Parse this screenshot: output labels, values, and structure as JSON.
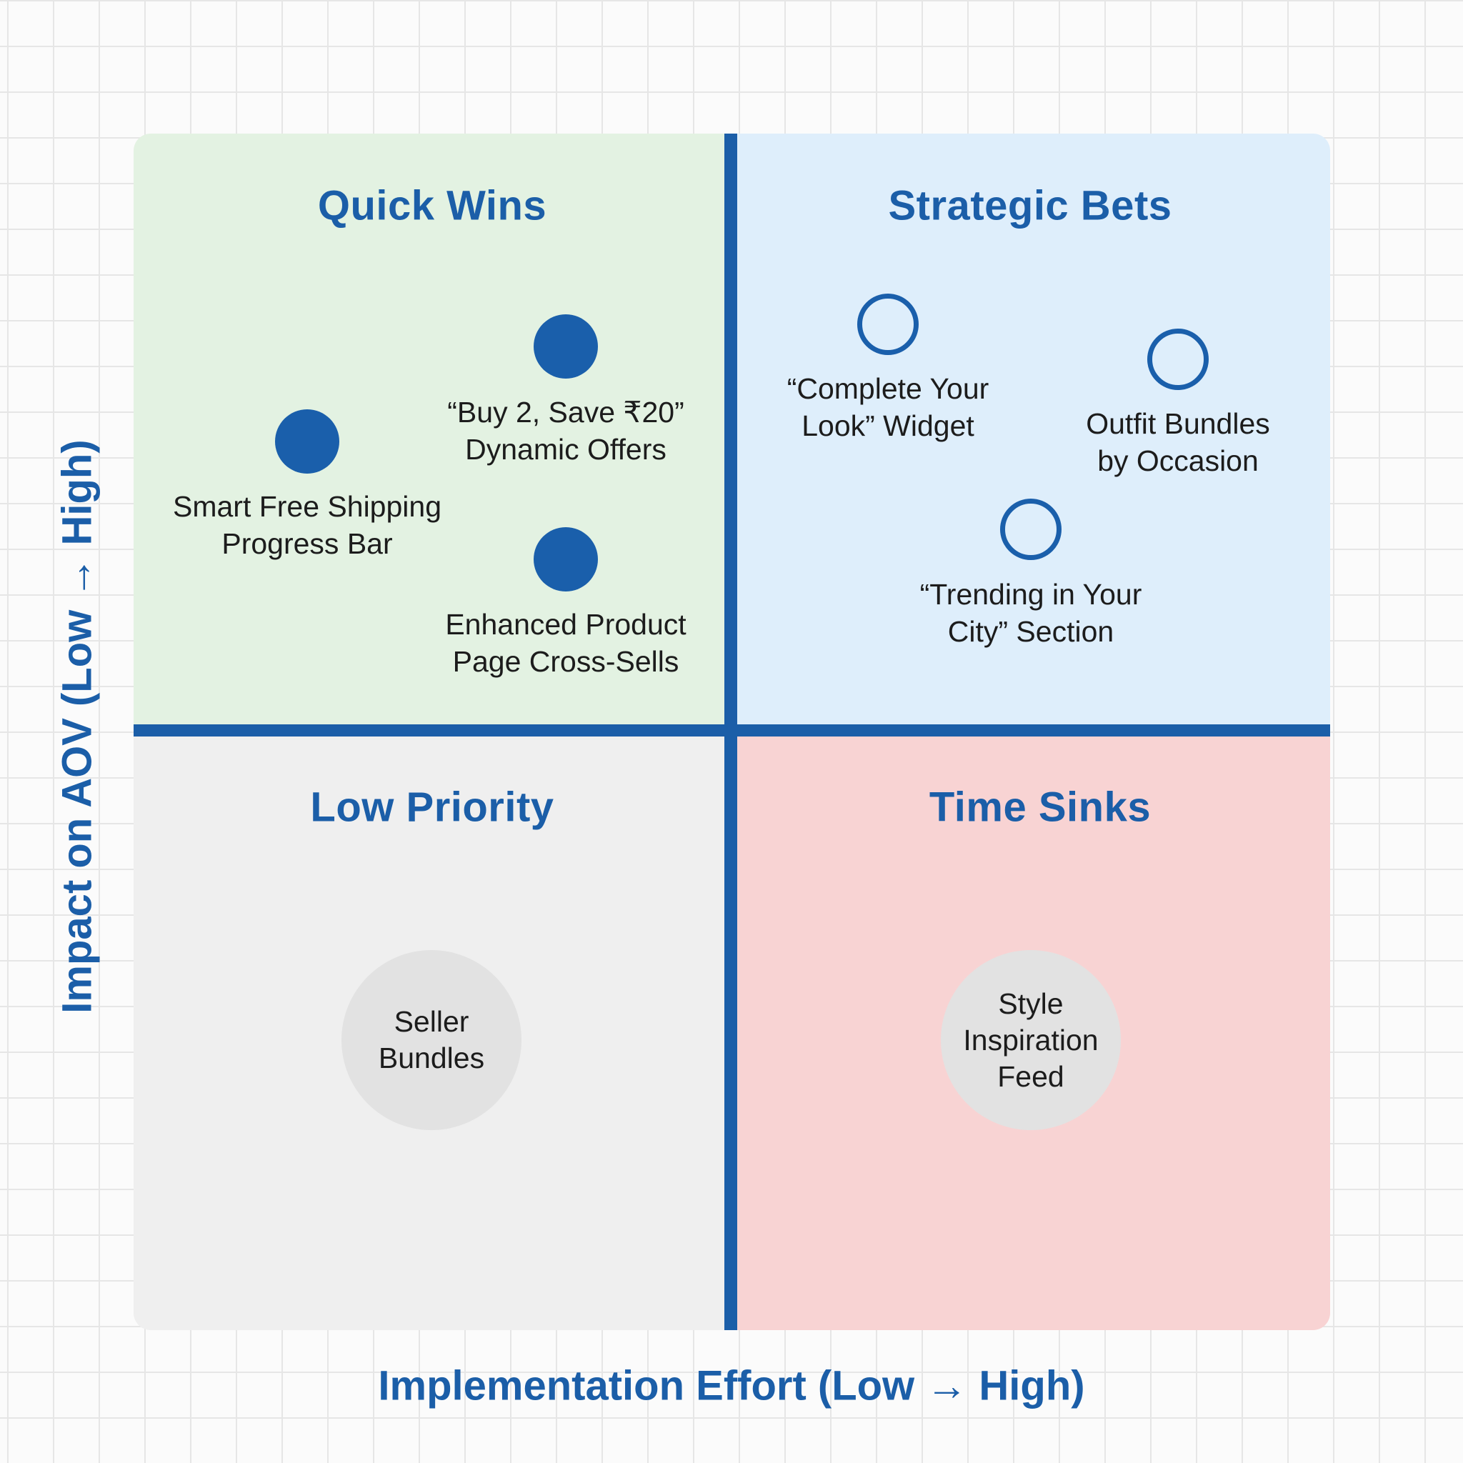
{
  "colors": {
    "accent": "#1b5ea8",
    "marker": "#1a5fab",
    "quick_wins_bg": "#e3f2e2",
    "strategic_bets_bg": "#deeefb",
    "low_priority_bg": "#efefef",
    "time_sinks_bg": "#f8d3d3",
    "bubble_bg": "#e2e2e2"
  },
  "axes": {
    "x_label": "Implementation Effort (Low → High)",
    "y_label": "Impact on AOV (Low → High)"
  },
  "quadrants": {
    "quick_wins": {
      "title": "Quick Wins",
      "items": [
        {
          "label": "“Buy 2, Save ₹20”\nDynamic Offers",
          "marker": "filled"
        },
        {
          "label": "Smart Free Shipping\nProgress Bar",
          "marker": "filled"
        },
        {
          "label": "Enhanced Product\nPage Cross-Sells",
          "marker": "filled"
        }
      ]
    },
    "strategic_bets": {
      "title": "Strategic Bets",
      "items": [
        {
          "label": "“Complete Your\nLook” Widget",
          "marker": "hollow"
        },
        {
          "label": "Outfit Bundles\nby Occasion",
          "marker": "hollow"
        },
        {
          "label": "“Trending in Your\nCity” Section",
          "marker": "hollow"
        }
      ]
    },
    "low_priority": {
      "title": "Low Priority",
      "items": [
        {
          "label": "Seller\nBundles",
          "marker": "bubble"
        }
      ]
    },
    "time_sinks": {
      "title": "Time Sinks",
      "items": [
        {
          "label": "Style\nInspiration\nFeed",
          "marker": "bubble"
        }
      ]
    }
  }
}
